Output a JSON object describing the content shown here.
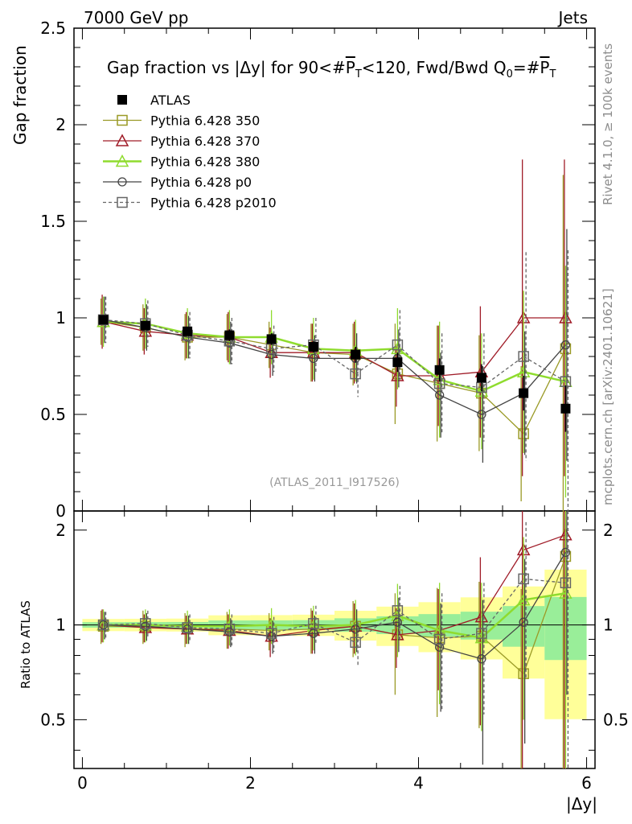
{
  "header": {
    "left": "7000 GeV pp",
    "right": "Jets"
  },
  "side_labels": {
    "rivet": "Rivet 4.1.0, ≥ 100k events",
    "mcplots": "mcplots.cern.ch [arXiv:2401.10621]"
  },
  "chart_data": {
    "type": "scatter",
    "title": "Gap fraction vs |Δy| for 90<#P_T<120, Fwd/Bwd Q_0=#P_T",
    "title_parts": {
      "a": "Gap fraction vs |Δy| for 90<#",
      "p": "P",
      "t": "T",
      "b": "<120, Fwd/Bwd Q",
      "zero": "0",
      "c": "=#"
    },
    "analysis_tag": "(ATLAS_2011_I917526)",
    "xlabel": "|Δy|",
    "ylabel_main": "Gap fraction",
    "ylabel_ratio": "Ratio to ATLAS",
    "xlim": [
      -0.1,
      6.1
    ],
    "ylim_main": [
      0,
      2.5
    ],
    "ylim_ratio": [
      0.35,
      2.3
    ],
    "xticks": [
      "0",
      "2",
      "4",
      "6"
    ],
    "yticks_main": [
      "0",
      "0.5",
      "1",
      "1.5",
      "2",
      "2.5"
    ],
    "yticks_ratio": [
      "0.5",
      "1",
      "2"
    ],
    "x": [
      0.25,
      0.75,
      1.25,
      1.75,
      2.25,
      2.75,
      3.25,
      3.75,
      4.25,
      4.75,
      5.25,
      5.75
    ],
    "data": {
      "name": "ATLAS",
      "values": [
        0.99,
        0.96,
        0.93,
        0.91,
        0.89,
        0.85,
        0.81,
        0.77,
        0.73,
        0.69,
        0.61,
        0.53
      ],
      "errors": [
        0.02,
        0.02,
        0.02,
        0.03,
        0.03,
        0.03,
        0.04,
        0.05,
        0.06,
        0.07,
        0.09,
        0.12
      ]
    },
    "series": [
      {
        "name": "Pythia 6.428 350",
        "color": "#9a9a26",
        "marker": "square",
        "dashed": false,
        "values": [
          0.98,
          0.95,
          0.9,
          0.9,
          0.86,
          0.82,
          0.81,
          0.71,
          0.66,
          0.61,
          0.4,
          0.84
        ],
        "errors": [
          0.12,
          0.12,
          0.12,
          0.12,
          0.12,
          0.15,
          0.16,
          0.26,
          0.3,
          0.3,
          0.35,
          0.9
        ],
        "ratio": [
          0.99,
          0.99,
          0.97,
          0.97,
          0.96,
          0.97,
          0.99,
          0.93,
          0.91,
          0.92,
          0.7,
          1.65
        ],
        "ratio_errors": [
          0.12,
          0.12,
          0.12,
          0.13,
          0.13,
          0.16,
          0.2,
          0.33,
          0.4,
          0.45,
          0.6,
          1.7
        ]
      },
      {
        "name": "Pythia 6.428 370",
        "color": "#a01c28",
        "marker": "triangle",
        "dashed": false,
        "values": [
          0.98,
          0.93,
          0.91,
          0.9,
          0.82,
          0.82,
          0.82,
          0.7,
          0.7,
          0.72,
          1.0,
          1.0
        ],
        "errors": [
          0.14,
          0.12,
          0.12,
          0.13,
          0.13,
          0.15,
          0.16,
          0.16,
          0.26,
          0.34,
          0.82,
          0.82
        ],
        "ratio": [
          1.0,
          0.98,
          0.97,
          0.96,
          0.92,
          0.96,
          0.99,
          0.93,
          0.96,
          1.06,
          1.73,
          1.93
        ],
        "ratio_errors": [
          0.12,
          0.1,
          0.1,
          0.12,
          0.13,
          0.15,
          0.18,
          0.2,
          0.34,
          0.58,
          1.4,
          1.7
        ]
      },
      {
        "name": "Pythia 6.428 380",
        "color": "#8fdc2e",
        "marker": "triangle",
        "dashed": false,
        "values": [
          0.98,
          0.97,
          0.92,
          0.9,
          0.9,
          0.84,
          0.83,
          0.84,
          0.68,
          0.62,
          0.72,
          0.67
        ],
        "errors": [
          0.13,
          0.13,
          0.13,
          0.14,
          0.14,
          0.16,
          0.16,
          0.21,
          0.3,
          0.3,
          0.42,
          0.6
        ],
        "ratio": [
          1.0,
          1.0,
          0.99,
          0.99,
          1.0,
          0.99,
          1.0,
          1.07,
          0.96,
          0.91,
          1.2,
          1.26
        ],
        "ratio_errors": [
          0.12,
          0.12,
          0.12,
          0.13,
          0.13,
          0.16,
          0.2,
          0.28,
          0.4,
          0.45,
          0.7,
          1.3
        ]
      },
      {
        "name": "Pythia 6.428 p0",
        "color": "#444444",
        "marker": "circle",
        "dashed": false,
        "values": [
          0.99,
          0.95,
          0.9,
          0.87,
          0.81,
          0.79,
          0.79,
          0.79,
          0.6,
          0.5,
          0.61,
          0.86
        ],
        "errors": [
          0.12,
          0.12,
          0.11,
          0.11,
          0.11,
          0.12,
          0.13,
          0.15,
          0.22,
          0.25,
          0.32,
          0.6
        ],
        "ratio": [
          1.0,
          0.99,
          0.97,
          0.95,
          0.92,
          0.94,
          0.97,
          1.02,
          0.85,
          0.78,
          1.02,
          1.7
        ],
        "ratio_errors": [
          0.1,
          0.1,
          0.1,
          0.1,
          0.11,
          0.13,
          0.15,
          0.2,
          0.32,
          0.42,
          0.6,
          1.1
        ]
      },
      {
        "name": "Pythia 6.428 p2010",
        "color": "#666666",
        "marker": "square",
        "dashed": true,
        "values": [
          0.99,
          0.97,
          0.91,
          0.88,
          0.84,
          0.86,
          0.71,
          0.86,
          0.66,
          0.64,
          0.8,
          0.67
        ],
        "errors": [
          0.12,
          0.12,
          0.12,
          0.12,
          0.12,
          0.14,
          0.12,
          0.18,
          0.26,
          0.28,
          0.54,
          0.68
        ],
        "ratio": [
          1.0,
          1.01,
          0.98,
          0.97,
          0.94,
          1.01,
          0.88,
          1.11,
          0.9,
          0.94,
          1.4,
          1.36
        ],
        "ratio_errors": [
          0.1,
          0.1,
          0.1,
          0.11,
          0.12,
          0.14,
          0.14,
          0.22,
          0.36,
          0.42,
          0.72,
          1.3
        ]
      }
    ]
  }
}
